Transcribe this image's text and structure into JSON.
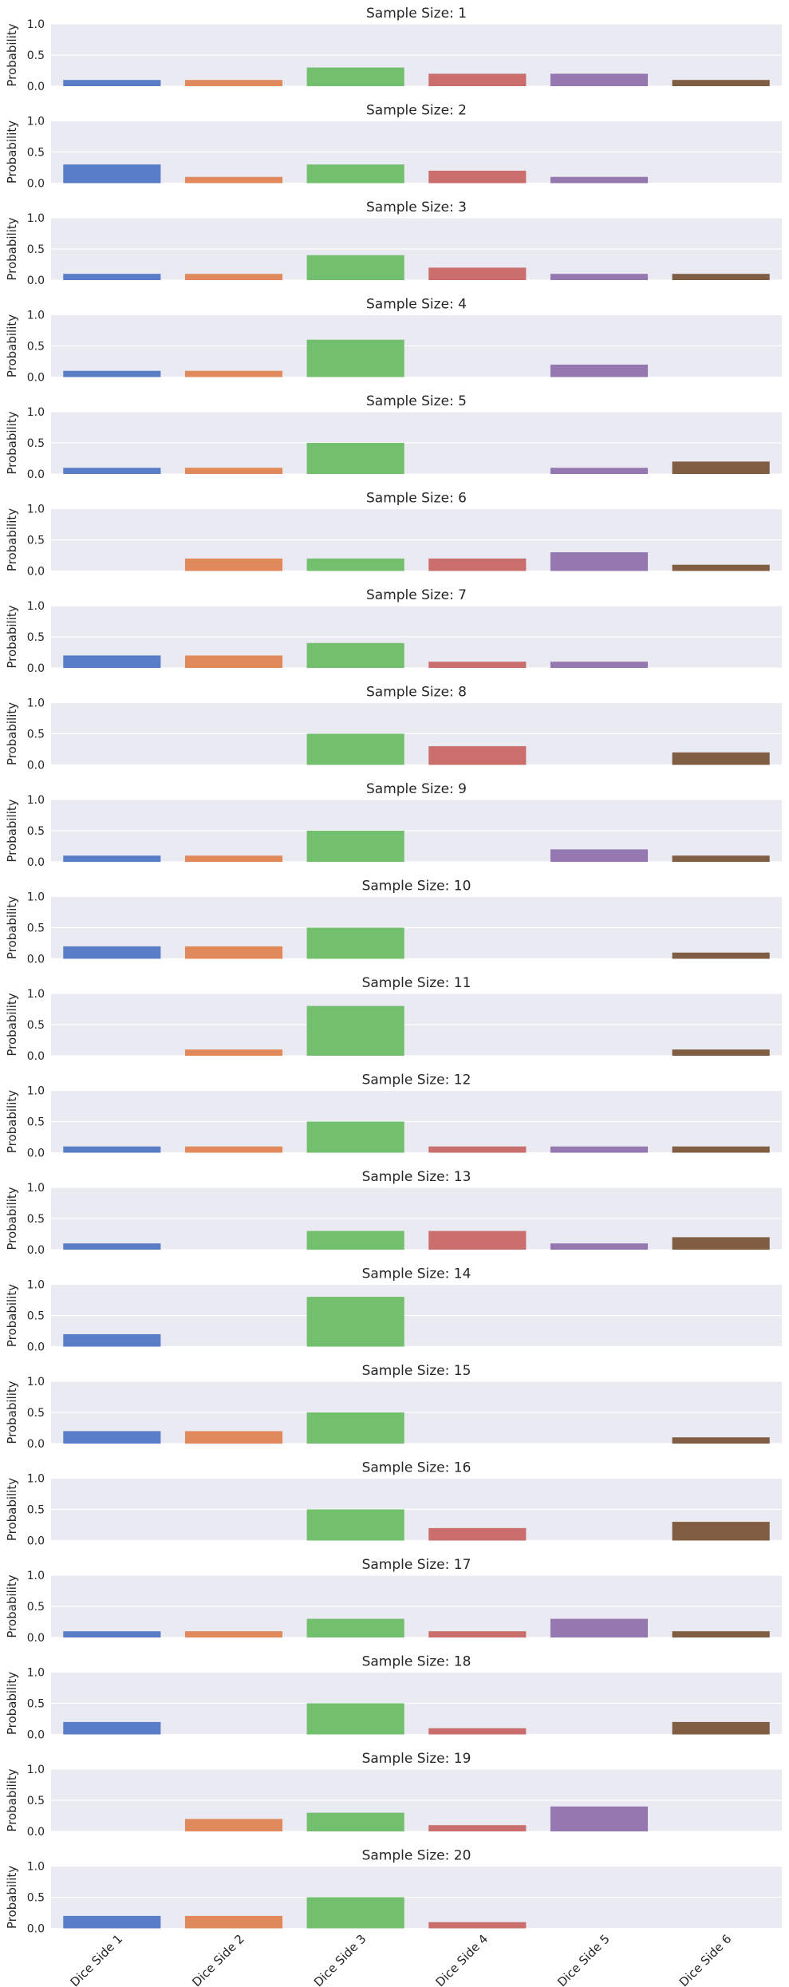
{
  "chart_data": {
    "type": "bar",
    "categories": [
      "Dice Side 1",
      "Dice Side 2",
      "Dice Side 3",
      "Dice Side 4",
      "Dice Side 5",
      "Dice Side 6"
    ],
    "colors": [
      "#5a7dc7",
      "#e0895a",
      "#72bf6e",
      "#c96e6d",
      "#9478af",
      "#7f5e43"
    ],
    "ylabel": "Probability",
    "ylim": [
      0,
      1.0
    ],
    "yticks": [
      "0.0",
      "0.5",
      "1.0"
    ],
    "subplots": [
      {
        "title": "Sample Size: 1",
        "values": [
          0.1,
          0.1,
          0.3,
          0.2,
          0.2,
          0.1
        ]
      },
      {
        "title": "Sample Size: 2",
        "values": [
          0.3,
          0.1,
          0.3,
          0.2,
          0.1,
          0.0
        ]
      },
      {
        "title": "Sample Size: 3",
        "values": [
          0.1,
          0.1,
          0.4,
          0.2,
          0.1,
          0.1
        ]
      },
      {
        "title": "Sample Size: 4",
        "values": [
          0.1,
          0.1,
          0.6,
          0.0,
          0.2,
          0.0
        ]
      },
      {
        "title": "Sample Size: 5",
        "values": [
          0.1,
          0.1,
          0.5,
          0.0,
          0.1,
          0.2
        ]
      },
      {
        "title": "Sample Size: 6",
        "values": [
          0.0,
          0.2,
          0.2,
          0.2,
          0.3,
          0.1
        ]
      },
      {
        "title": "Sample Size: 7",
        "values": [
          0.2,
          0.2,
          0.4,
          0.1,
          0.1,
          0.0
        ]
      },
      {
        "title": "Sample Size: 8",
        "values": [
          0.0,
          0.0,
          0.5,
          0.3,
          0.0,
          0.2
        ]
      },
      {
        "title": "Sample Size: 9",
        "values": [
          0.1,
          0.1,
          0.5,
          0.0,
          0.2,
          0.1
        ]
      },
      {
        "title": "Sample Size: 10",
        "values": [
          0.2,
          0.2,
          0.5,
          0.0,
          0.0,
          0.1
        ]
      },
      {
        "title": "Sample Size: 11",
        "values": [
          0.0,
          0.1,
          0.8,
          0.0,
          0.0,
          0.1
        ]
      },
      {
        "title": "Sample Size: 12",
        "values": [
          0.1,
          0.1,
          0.5,
          0.1,
          0.1,
          0.1
        ]
      },
      {
        "title": "Sample Size: 13",
        "values": [
          0.1,
          0.0,
          0.3,
          0.3,
          0.1,
          0.2
        ]
      },
      {
        "title": "Sample Size: 14",
        "values": [
          0.2,
          0.0,
          0.8,
          0.0,
          0.0,
          0.0
        ]
      },
      {
        "title": "Sample Size: 15",
        "values": [
          0.2,
          0.2,
          0.5,
          0.0,
          0.0,
          0.1
        ]
      },
      {
        "title": "Sample Size: 16",
        "values": [
          0.0,
          0.0,
          0.5,
          0.2,
          0.0,
          0.3
        ]
      },
      {
        "title": "Sample Size: 17",
        "values": [
          0.1,
          0.1,
          0.3,
          0.1,
          0.3,
          0.1
        ]
      },
      {
        "title": "Sample Size: 18",
        "values": [
          0.2,
          0.0,
          0.5,
          0.1,
          0.0,
          0.2
        ]
      },
      {
        "title": "Sample Size: 19",
        "values": [
          0.0,
          0.2,
          0.3,
          0.1,
          0.4,
          0.0
        ]
      },
      {
        "title": "Sample Size: 20",
        "values": [
          0.2,
          0.2,
          0.5,
          0.1,
          0.0,
          0.0
        ]
      }
    ]
  }
}
